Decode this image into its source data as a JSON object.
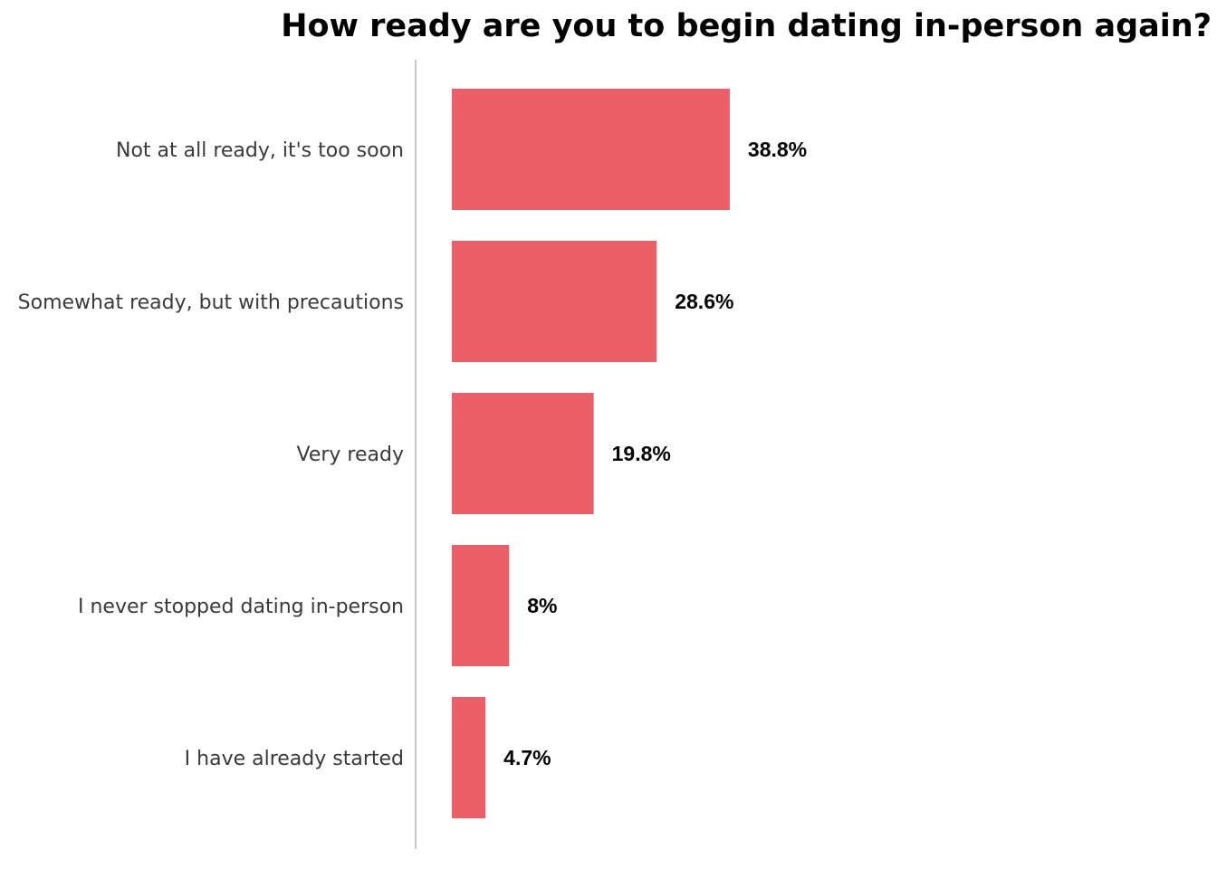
{
  "chart_data": {
    "type": "bar",
    "orientation": "horizontal",
    "title": "How ready are you to begin dating in-person again?",
    "xlabel": "",
    "ylabel": "",
    "categories": [
      "Not at all ready, it's too soon",
      "Somewhat ready, but with precautions",
      "Very ready",
      "I never stopped dating in-person",
      "I have already started"
    ],
    "values": [
      38.8,
      28.6,
      19.8,
      8,
      4.7
    ],
    "value_labels": [
      "38.8%",
      "28.6%",
      "19.8%",
      "8%",
      "4.7%"
    ],
    "unit": "%",
    "grid": false,
    "legend": "none",
    "bar_color": "#eb5f69"
  }
}
